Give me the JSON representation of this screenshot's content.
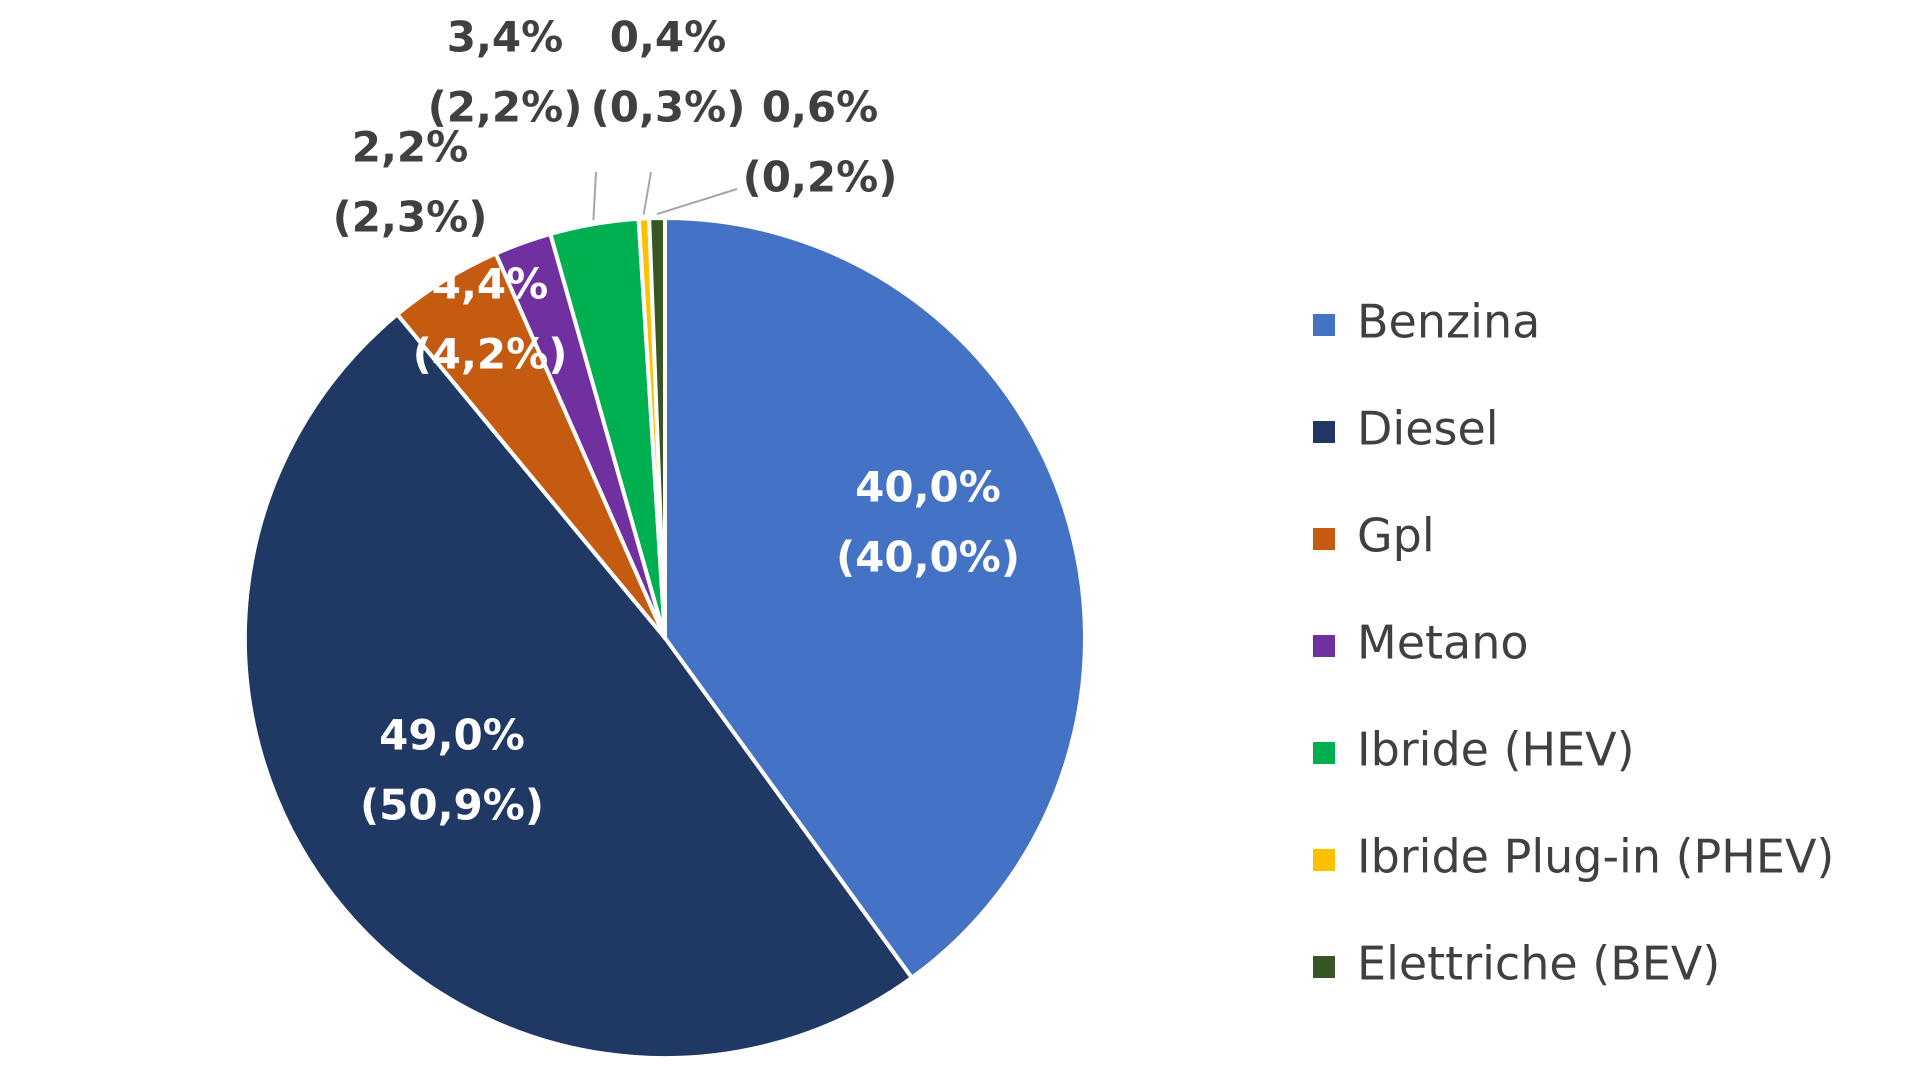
{
  "chart_data": {
    "type": "pie",
    "legend_position": "right",
    "slices": [
      {
        "name": "Benzina",
        "value": 40.0,
        "previous": 40.0,
        "label": "40,0%",
        "sublabel": "(40,0%)",
        "color": "#4472C4",
        "label_color": "#ffffff"
      },
      {
        "name": "Diesel",
        "value": 49.0,
        "previous": 50.9,
        "label": "49,0%",
        "sublabel": "(50,9%)",
        "color": "#203864",
        "label_color": "#ffffff"
      },
      {
        "name": "Gpl",
        "value": 4.4,
        "previous": 4.2,
        "label": "4,4%",
        "sublabel": "(4,2%)",
        "color": "#C55A11",
        "label_color": "#ffffff"
      },
      {
        "name": "Metano",
        "value": 2.2,
        "previous": 2.3,
        "label": "2,2%",
        "sublabel": "(2,3%)",
        "color": "#7030A0",
        "label_color": "#404040"
      },
      {
        "name": "Ibride (HEV)",
        "value": 3.4,
        "previous": 2.2,
        "label": "3,4%",
        "sublabel": "(2,2%)",
        "color": "#00B050",
        "label_color": "#404040"
      },
      {
        "name": "Ibride Plug-in  (PHEV)",
        "value": 0.4,
        "previous": 0.3,
        "label": "0,4%",
        "sublabel": "(0,3%)",
        "color": "#FFC000",
        "label_color": "#404040"
      },
      {
        "name": "Elettriche (BEV)",
        "value": 0.6,
        "previous": 0.2,
        "label": "0,6%",
        "sublabel": "(0,2%)",
        "color": "#375623",
        "label_color": "#404040"
      }
    ]
  }
}
